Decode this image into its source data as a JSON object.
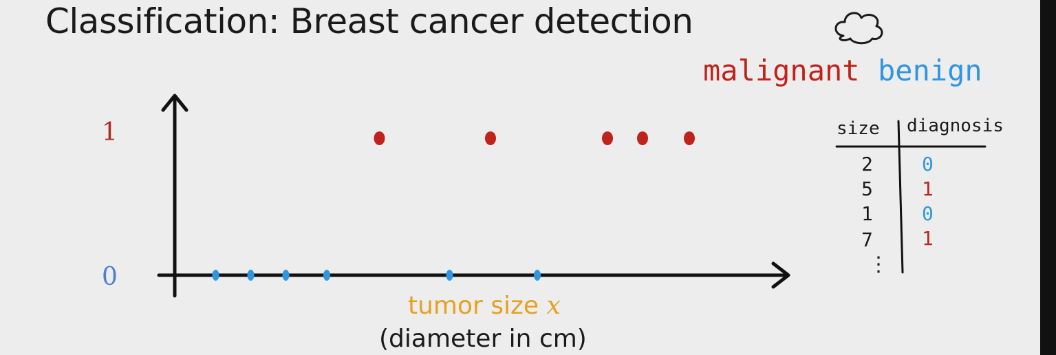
{
  "title": "Classification: Breast cancer detection",
  "legend": {
    "malignant": "malignant",
    "benign": "benign"
  },
  "colors": {
    "malignant": "#c0231b",
    "benign": "#2f96e0",
    "xlabel": "#e6a11f",
    "axis": "#111111"
  },
  "chart_data": {
    "type": "scatter",
    "title": "Classification: Breast cancer detection",
    "xlabel_main": "tumor size",
    "xlabel_var": "x",
    "xlabel_sub": "(diameter in cm)",
    "ylabel": "",
    "yticks": [
      "1",
      "0"
    ],
    "series": [
      {
        "name": "benign",
        "class": 0,
        "x": [
          0.7,
          1.3,
          1.9,
          2.6,
          4.7,
          6.2
        ],
        "y": [
          0,
          0,
          0,
          0,
          0,
          0
        ]
      },
      {
        "name": "malignant",
        "class": 1,
        "x": [
          3.5,
          5.4,
          7.4,
          8.0,
          8.8
        ],
        "y": [
          1,
          1,
          1,
          1,
          1
        ]
      }
    ],
    "xlim": [
      0,
      10
    ],
    "ylim": [
      0,
      1
    ]
  },
  "table": {
    "headers": [
      "size",
      "diagnosis"
    ],
    "rows": [
      {
        "size": "2",
        "diagnosis": "0"
      },
      {
        "size": "5",
        "diagnosis": "1"
      },
      {
        "size": "1",
        "diagnosis": "0"
      },
      {
        "size": "7",
        "diagnosis": "1"
      }
    ],
    "more": "⋮"
  },
  "icons": {
    "cloud": "cloud-icon"
  }
}
